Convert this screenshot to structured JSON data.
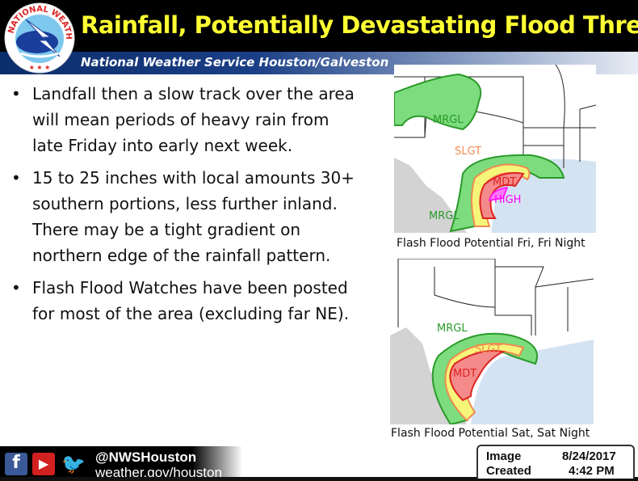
{
  "header": {
    "title": "Rainfall, Potentially Devastating Flood Threat",
    "subtitle": "National Weather Service Houston/Galveston",
    "logo_text": "NATIONAL WEATHER SERVICE"
  },
  "bullets": [
    "Landfall then a slow track over the area will mean periods of heavy rain from late Friday into early next week.",
    "15 to 25 inches with local amounts 30+  southern portions, less further inland. There may be a tight gradient on northern edge of the rainfall pattern.",
    "Flash Flood Watches have been posted for most of the area (excluding far NE)."
  ],
  "bullet_char": "•",
  "maps": [
    {
      "caption": "Flash Flood Potential Fri, Fri Night",
      "labels": {
        "mrgl_north": "MRGL",
        "slgt": "SLGT",
        "mdt": "MDT",
        "high": "HIGH",
        "mrgl_south": "MRGL"
      }
    },
    {
      "caption": "Flash Flood Potential Sat, Sat Night",
      "labels": {
        "mrgl": "MRGL",
        "slgt": "SLGT",
        "mdt": "MDT"
      }
    }
  ],
  "colors": {
    "mrgl": "#7ddc7d",
    "slgt": "#f5f57a",
    "mdt": "#f58a8a",
    "high": "#ff55ff",
    "gulf": "#d4e3f1",
    "mexico": "#d3d3d3",
    "title": "#ffff33"
  },
  "footer": {
    "handle": "@NWSHouston",
    "site": "weather.gov/houston",
    "icons": [
      "facebook-icon",
      "youtube-icon",
      "twitter-icon"
    ]
  },
  "datebox": {
    "image_label": "Image",
    "created_label": "Created",
    "date": "8/24/2017",
    "time": "4:42 PM"
  }
}
